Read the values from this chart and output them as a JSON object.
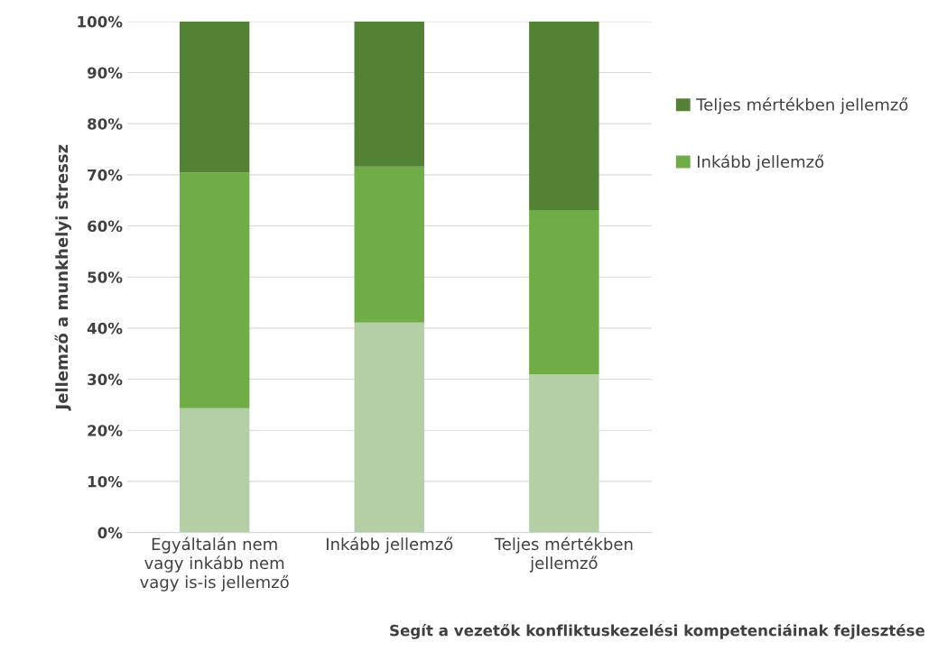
{
  "chart_data": {
    "type": "bar",
    "stacked": true,
    "categories": [
      "Egyáltalán nem\nvagy inkább nem\nvagy is-is jellemző",
      "Inkább jellemző",
      "Teljes mértékben\njellemző"
    ],
    "series": [
      {
        "color": "#b4cfa6",
        "values": [
          24.3,
          41.1,
          31.0
        ]
      },
      {
        "name": "Inkább jellemző",
        "color": "#70ad47",
        "values": [
          46.1,
          30.5,
          32.1
        ]
      },
      {
        "name": "Teljes mértékben jellemző",
        "color": "#548235",
        "values": [
          29.6,
          28.4,
          36.9
        ]
      }
    ],
    "xlabel": "Segít a vezetők konfliktuskezelési kompetenciáinak fejlesztése",
    "ylabel": "Jellemző a munkhelyi stressz",
    "ylim": [
      0,
      100
    ],
    "yticks": [
      {
        "value": 0,
        "label": "0%"
      },
      {
        "value": 10,
        "label": "10%"
      },
      {
        "value": 20,
        "label": "20%"
      },
      {
        "value": 30,
        "label": "30%"
      },
      {
        "value": 40,
        "label": "40%"
      },
      {
        "value": 50,
        "label": "50%"
      },
      {
        "value": 60,
        "label": "60%"
      },
      {
        "value": 70,
        "label": "70%"
      },
      {
        "value": 80,
        "label": "80%"
      },
      {
        "value": 90,
        "label": "90%"
      },
      {
        "value": 100,
        "label": "100%"
      }
    ],
    "grid": "y",
    "legend": "right"
  }
}
